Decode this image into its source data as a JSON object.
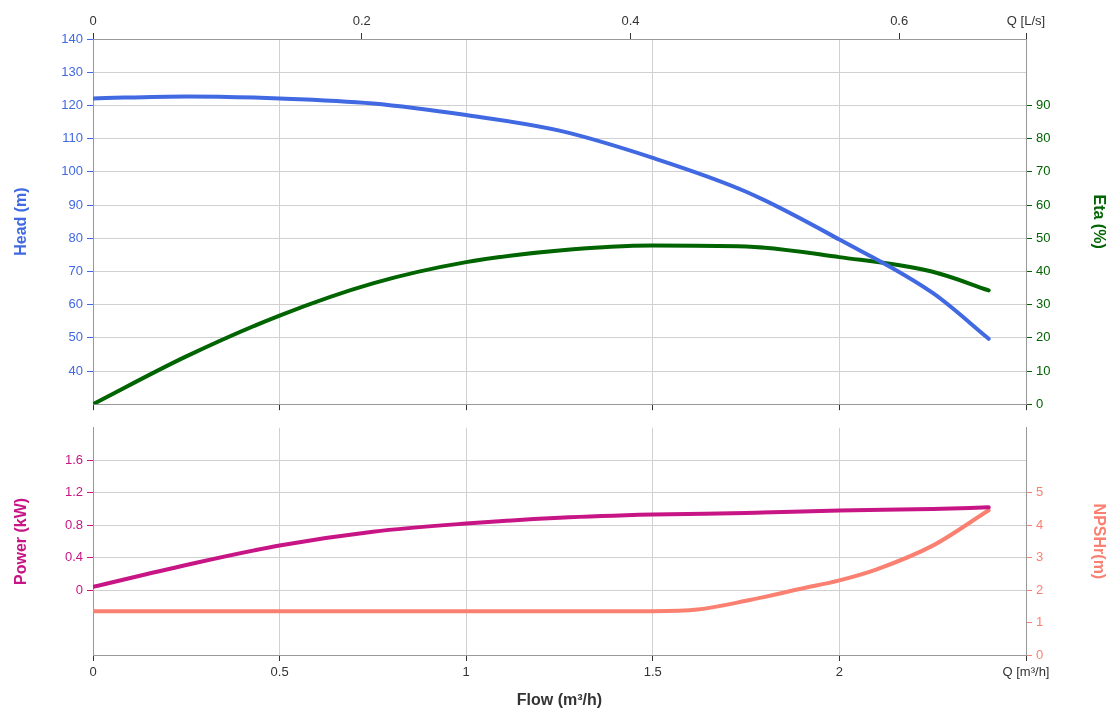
{
  "chart_data": [
    {
      "type": "line",
      "ylabel": "Head (m)",
      "y2label": "Eta (%)",
      "xlim": [
        0,
        2.5
      ],
      "xticks": [
        0,
        0.5,
        1,
        1.5,
        2,
        2.5
      ],
      "tick_labels": "y",
      "x2lim": [
        0,
        0.6944
      ],
      "x2ticks": [
        0,
        0.2,
        0.4,
        0.6,
        {
          "value": 0.6944,
          "label": "Q [L/s]"
        }
      ],
      "ylim": [
        30,
        140
      ],
      "yticks": [
        40,
        50,
        60,
        70,
        80,
        90,
        100,
        110,
        120,
        130,
        140
      ],
      "y2lim": [
        0,
        110
      ],
      "y2ticks": [
        0,
        10,
        20,
        30,
        40,
        50,
        60,
        70,
        80,
        90
      ],
      "grid": true,
      "marker": "none",
      "line_style": "solid",
      "series": [
        {
          "color": "#4169e1",
          "x": [
            0,
            0.25,
            0.5,
            0.75,
            1,
            1.25,
            1.5,
            1.75,
            2,
            2.25,
            2.4
          ],
          "values": [
            122.1,
            122.7,
            122.1,
            120.6,
            117.1,
            112.4,
            104.2,
            94,
            79.6,
            63.5,
            49.7
          ]
        },
        {
          "color": "#006400",
          "axis": "y2",
          "x": [
            0,
            0.25,
            0.5,
            0.75,
            1,
            1.25,
            1.5,
            1.75,
            2,
            2.25,
            2.4
          ],
          "values": [
            0,
            14.4,
            26.7,
            36.4,
            42.8,
            46.3,
            47.8,
            47.5,
            44.3,
            39.9,
            34.3
          ]
        }
      ]
    },
    {
      "type": "line",
      "xlabel": "Flow (m³/h)",
      "ylabel": "Power (kW)",
      "y2label": "NPSHr(m)",
      "xlim": [
        0,
        2.5
      ],
      "xticks": [
        0,
        0.5,
        1,
        1.5,
        2,
        {
          "value": 2.5,
          "label": "Q [m³/h]"
        }
      ],
      "ylim": [
        -0.8,
        2.0
      ],
      "yticks": [
        0,
        0.4,
        0.8,
        1.2,
        1.6
      ],
      "y2lim": [
        0,
        7
      ],
      "y2ticks": [
        0,
        1,
        2,
        3,
        4,
        5
      ],
      "grid": true,
      "marker": "none",
      "line_style": "solid",
      "series": [
        {
          "color": "#c71585",
          "x": [
            0,
            0.25,
            0.5,
            0.75,
            1,
            1.25,
            1.5,
            1.75,
            2,
            2.25,
            2.4
          ],
          "values": [
            0.04,
            0.31,
            0.55,
            0.72,
            0.82,
            0.89,
            0.93,
            0.95,
            0.98,
            1.0,
            1.02
          ]
        },
        {
          "color": "#fa8072",
          "axis": "y2",
          "x": [
            0,
            0.5,
            1,
            1.5,
            1.62,
            1.75,
            1.9,
            2,
            2.1,
            2.25,
            2.4
          ],
          "values": [
            1.35,
            1.35,
            1.35,
            1.35,
            1.4,
            1.67,
            2.05,
            2.3,
            2.64,
            3.37,
            4.46
          ]
        }
      ]
    }
  ]
}
